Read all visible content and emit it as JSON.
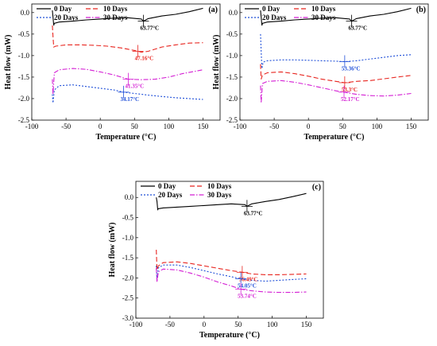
{
  "chart_data": [
    {
      "type": "line",
      "panel_label": "(a)",
      "xlabel": "Temperature (°C)",
      "ylabel": "Heat flow (mW)",
      "xlim": [
        -100,
        175
      ],
      "ylim": [
        -2.5,
        0.2
      ],
      "xticks": [
        -100,
        -50,
        0,
        50,
        100,
        150
      ],
      "yticks": [
        0.0,
        -0.5,
        -1.0,
        -1.5,
        -2.0,
        -2.5
      ],
      "legend": {
        "placement": "top-left",
        "columns": 2
      },
      "series": [
        {
          "name": "0 Day",
          "color": "#000000",
          "dash": "solid",
          "points": [
            [
              -70,
              0.05
            ],
            [
              -69,
              -0.1
            ],
            [
              -68,
              -0.3
            ],
            [
              -67,
              -0.25
            ],
            [
              -60,
              -0.22
            ],
            [
              -40,
              -0.2
            ],
            [
              -20,
              -0.17
            ],
            [
              0,
              -0.15
            ],
            [
              20,
              -0.13
            ],
            [
              40,
              -0.12
            ],
            [
              60,
              -0.15
            ],
            [
              63,
              -0.2
            ],
            [
              70,
              -0.14
            ],
            [
              90,
              -0.08
            ],
            [
              110,
              -0.04
            ],
            [
              130,
              0.02
            ],
            [
              150,
              0.1
            ]
          ]
        },
        {
          "name": "10 Days",
          "color": "#e8251f",
          "dash": "dashed",
          "points": [
            [
              -70,
              -0.3
            ],
            [
              -69,
              -0.55
            ],
            [
              -68,
              -0.8
            ],
            [
              -65,
              -0.78
            ],
            [
              -50,
              -0.75
            ],
            [
              -30,
              -0.75
            ],
            [
              -10,
              -0.76
            ],
            [
              10,
              -0.78
            ],
            [
              30,
              -0.82
            ],
            [
              50,
              -0.88
            ],
            [
              60,
              -0.92
            ],
            [
              70,
              -0.9
            ],
            [
              90,
              -0.8
            ],
            [
              110,
              -0.75
            ],
            [
              130,
              -0.71
            ],
            [
              150,
              -0.7
            ]
          ]
        },
        {
          "name": "20 Days",
          "color": "#1f4fd8",
          "dash": "dotted",
          "points": [
            [
              -70,
              -1.9
            ],
            [
              -69,
              -2.1
            ],
            [
              -67,
              -1.8
            ],
            [
              -60,
              -1.7
            ],
            [
              -40,
              -1.68
            ],
            [
              -20,
              -1.72
            ],
            [
              0,
              -1.76
            ],
            [
              20,
              -1.8
            ],
            [
              34,
              -1.85
            ],
            [
              50,
              -1.88
            ],
            [
              70,
              -1.92
            ],
            [
              90,
              -1.95
            ],
            [
              110,
              -1.98
            ],
            [
              130,
              -2.0
            ],
            [
              150,
              -2.02
            ]
          ]
        },
        {
          "name": "30 Days",
          "color": "#d41fd4",
          "dash": "dashdot",
          "points": [
            [
              -70,
              -1.55
            ],
            [
              -69,
              -1.9
            ],
            [
              -67,
              -1.4
            ],
            [
              -60,
              -1.33
            ],
            [
              -40,
              -1.3
            ],
            [
              -20,
              -1.32
            ],
            [
              0,
              -1.38
            ],
            [
              20,
              -1.45
            ],
            [
              41,
              -1.55
            ],
            [
              60,
              -1.56
            ],
            [
              80,
              -1.55
            ],
            [
              100,
              -1.5
            ],
            [
              120,
              -1.42
            ],
            [
              140,
              -1.36
            ],
            [
              150,
              -1.33
            ]
          ]
        }
      ],
      "annotations": [
        {
          "text": "63.77°C",
          "x": 63,
          "y": -0.2,
          "color": "#000000"
        },
        {
          "text": "47.16°C",
          "x": 55,
          "y": -0.9,
          "color": "#e8251f"
        },
        {
          "text": "41.35°C",
          "x": 41,
          "y": -1.55,
          "color": "#d41fd4"
        },
        {
          "text": "34.17°C",
          "x": 34,
          "y": -1.85,
          "color": "#1f4fd8"
        }
      ]
    },
    {
      "type": "line",
      "panel_label": "(b)",
      "xlabel": "Temperature (°C)",
      "ylabel": "Heat flow (mW)",
      "xlim": [
        -100,
        175
      ],
      "ylim": [
        -2.5,
        0.2
      ],
      "xticks": [
        -100,
        -50,
        0,
        50,
        100,
        150
      ],
      "yticks": [
        0.0,
        -0.5,
        -1.0,
        -1.5,
        -2.0,
        -2.5
      ],
      "legend": {
        "placement": "top-left",
        "columns": 2
      },
      "series": [
        {
          "name": "0 Day",
          "color": "#000000",
          "dash": "solid",
          "points": [
            [
              -70,
              0.05
            ],
            [
              -69,
              -0.1
            ],
            [
              -68,
              -0.3
            ],
            [
              -67,
              -0.25
            ],
            [
              -60,
              -0.22
            ],
            [
              -40,
              -0.2
            ],
            [
              -20,
              -0.17
            ],
            [
              0,
              -0.15
            ],
            [
              20,
              -0.13
            ],
            [
              40,
              -0.12
            ],
            [
              60,
              -0.15
            ],
            [
              63,
              -0.2
            ],
            [
              70,
              -0.14
            ],
            [
              90,
              -0.08
            ],
            [
              110,
              -0.04
            ],
            [
              130,
              0.02
            ],
            [
              150,
              0.1
            ]
          ]
        },
        {
          "name": "10 Days",
          "color": "#e8251f",
          "dash": "dashed",
          "points": [
            [
              -70,
              -1.2
            ],
            [
              -69,
              -1.55
            ],
            [
              -67,
              -1.45
            ],
            [
              -60,
              -1.4
            ],
            [
              -40,
              -1.38
            ],
            [
              -20,
              -1.42
            ],
            [
              0,
              -1.48
            ],
            [
              20,
              -1.55
            ],
            [
              40,
              -1.6
            ],
            [
              53,
              -1.63
            ],
            [
              70,
              -1.6
            ],
            [
              90,
              -1.58
            ],
            [
              110,
              -1.54
            ],
            [
              130,
              -1.5
            ],
            [
              150,
              -1.46
            ]
          ]
        },
        {
          "name": "20 Days",
          "color": "#1f4fd8",
          "dash": "dotted",
          "points": [
            [
              -70,
              -0.5
            ],
            [
              -69,
              -0.9
            ],
            [
              -68,
              -1.3
            ],
            [
              -66,
              -1.15
            ],
            [
              -60,
              -1.12
            ],
            [
              -40,
              -1.1
            ],
            [
              -20,
              -1.1
            ],
            [
              0,
              -1.11
            ],
            [
              20,
              -1.12
            ],
            [
              40,
              -1.13
            ],
            [
              53,
              -1.14
            ],
            [
              70,
              -1.12
            ],
            [
              90,
              -1.08
            ],
            [
              110,
              -1.04
            ],
            [
              130,
              -1.0
            ],
            [
              150,
              -0.98
            ]
          ]
        },
        {
          "name": "30 Days",
          "color": "#d41fd4",
          "dash": "dashdot",
          "points": [
            [
              -70,
              -1.7
            ],
            [
              -69,
              -2.1
            ],
            [
              -67,
              -1.65
            ],
            [
              -60,
              -1.6
            ],
            [
              -40,
              -1.58
            ],
            [
              -20,
              -1.62
            ],
            [
              0,
              -1.68
            ],
            [
              20,
              -1.75
            ],
            [
              40,
              -1.82
            ],
            [
              52,
              -1.85
            ],
            [
              70,
              -1.9
            ],
            [
              90,
              -1.93
            ],
            [
              110,
              -1.94
            ],
            [
              130,
              -1.92
            ],
            [
              150,
              -1.88
            ]
          ]
        }
      ],
      "annotations": [
        {
          "text": "63.77°C",
          "x": 63,
          "y": -0.2,
          "color": "#000000"
        },
        {
          "text": "53.36°C",
          "x": 53,
          "y": -1.14,
          "color": "#1f4fd8"
        },
        {
          "text": "53.3°C",
          "x": 53,
          "y": -1.63,
          "color": "#e8251f"
        },
        {
          "text": "52.17°C",
          "x": 52,
          "y": -1.85,
          "color": "#d41fd4"
        }
      ]
    },
    {
      "type": "line",
      "panel_label": "(c)",
      "xlabel": "Temperature (°C)",
      "ylabel": "Heat flow (mW)",
      "xlim": [
        -100,
        175
      ],
      "ylim": [
        -3.0,
        0.4
      ],
      "xticks": [
        -100,
        -50,
        0,
        50,
        100,
        150
      ],
      "yticks": [
        0.0,
        -0.5,
        -1.0,
        -1.5,
        -2.0,
        -2.5,
        -3.0
      ],
      "legend": {
        "placement": "top-left",
        "columns": 2
      },
      "series": [
        {
          "name": "0 Day",
          "color": "#000000",
          "dash": "solid",
          "points": [
            [
              -70,
              0.0
            ],
            [
              -69,
              -0.1
            ],
            [
              -68,
              -0.3
            ],
            [
              -67,
              -0.28
            ],
            [
              -60,
              -0.26
            ],
            [
              -40,
              -0.24
            ],
            [
              -20,
              -0.22
            ],
            [
              0,
              -0.2
            ],
            [
              20,
              -0.18
            ],
            [
              40,
              -0.16
            ],
            [
              60,
              -0.18
            ],
            [
              63,
              -0.22
            ],
            [
              70,
              -0.16
            ],
            [
              90,
              -0.1
            ],
            [
              110,
              -0.05
            ],
            [
              130,
              0.02
            ],
            [
              150,
              0.1
            ]
          ]
        },
        {
          "name": "10 Days",
          "color": "#e8251f",
          "dash": "dashed",
          "points": [
            [
              -70,
              -1.3
            ],
            [
              -69,
              -1.8
            ],
            [
              -67,
              -1.7
            ],
            [
              -60,
              -1.62
            ],
            [
              -40,
              -1.6
            ],
            [
              -20,
              -1.64
            ],
            [
              0,
              -1.7
            ],
            [
              20,
              -1.76
            ],
            [
              40,
              -1.82
            ],
            [
              56,
              -1.86
            ],
            [
              70,
              -1.9
            ],
            [
              90,
              -1.92
            ],
            [
              110,
              -1.92
            ],
            [
              130,
              -1.91
            ],
            [
              150,
              -1.9
            ]
          ]
        },
        {
          "name": "20 Days",
          "color": "#1f4fd8",
          "dash": "dotted",
          "points": [
            [
              -70,
              -1.7
            ],
            [
              -69,
              -2.05
            ],
            [
              -67,
              -1.75
            ],
            [
              -60,
              -1.68
            ],
            [
              -40,
              -1.68
            ],
            [
              -20,
              -1.74
            ],
            [
              0,
              -1.82
            ],
            [
              20,
              -1.9
            ],
            [
              40,
              -1.97
            ],
            [
              54,
              -2.02
            ],
            [
              70,
              -2.06
            ],
            [
              90,
              -2.08
            ],
            [
              110,
              -2.06
            ],
            [
              130,
              -2.04
            ],
            [
              150,
              -2.02
            ]
          ]
        },
        {
          "name": "30 Days",
          "color": "#d41fd4",
          "dash": "dashdot",
          "points": [
            [
              -70,
              -1.75
            ],
            [
              -69,
              -2.1
            ],
            [
              -67,
              -1.85
            ],
            [
              -60,
              -1.78
            ],
            [
              -40,
              -1.8
            ],
            [
              -20,
              -1.88
            ],
            [
              0,
              -1.98
            ],
            [
              20,
              -2.1
            ],
            [
              40,
              -2.2
            ],
            [
              54,
              -2.28
            ],
            [
              70,
              -2.32
            ],
            [
              90,
              -2.35
            ],
            [
              110,
              -2.36
            ],
            [
              130,
              -2.36
            ],
            [
              150,
              -2.35
            ]
          ]
        }
      ],
      "annotations": [
        {
          "text": "63.77°C",
          "x": 63,
          "y": -0.22,
          "color": "#000000"
        },
        {
          "text": "56.49°C",
          "x": 56,
          "y": -1.86,
          "color": "#e8251f"
        },
        {
          "text": "54.05°C",
          "x": 54,
          "y": -2.02,
          "color": "#1f4fd8"
        },
        {
          "text": "53.74°C",
          "x": 54,
          "y": -2.28,
          "color": "#d41fd4"
        }
      ]
    }
  ]
}
